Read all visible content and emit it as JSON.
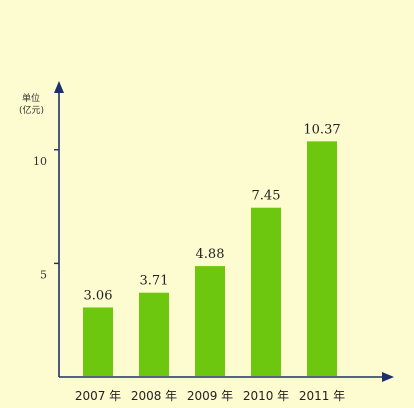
{
  "chart_data": {
    "type": "bar",
    "title": "",
    "xlabel": "",
    "ylabel": "单位（亿元）",
    "ylabel_lines": [
      "单位",
      "(亿元)"
    ],
    "categories": [
      "2007 年",
      "2008 年",
      "2009 年",
      "2010 年",
      "2011 年"
    ],
    "values": [
      3.06,
      3.71,
      4.88,
      7.45,
      10.37
    ],
    "value_labels": [
      "3.06",
      "3.71",
      "4.88",
      "7.45",
      "10.37"
    ],
    "yticks": [
      5,
      10
    ],
    "ytick_labels": [
      "5",
      "10"
    ],
    "ylim": [
      0,
      12.85
    ],
    "grid": false,
    "legend": "none",
    "colors": {
      "bar": "#6dc70f",
      "axis": "#1f2f6e",
      "background": "#fdfbd0"
    }
  }
}
